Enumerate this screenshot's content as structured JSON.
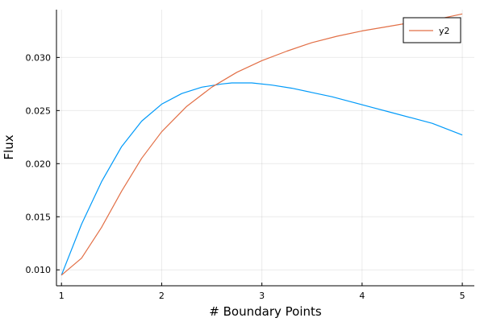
{
  "chart_data": {
    "type": "line",
    "title": "",
    "xlabel": "# Boundary Points",
    "ylabel": "Flux",
    "xlim": [
      0.95,
      5.12
    ],
    "ylim": [
      0.0085,
      0.0345
    ],
    "xticks": [
      1,
      2,
      3,
      4,
      5
    ],
    "xtick_labels": [
      "1",
      "2",
      "3",
      "4",
      "5"
    ],
    "yticks": [
      0.01,
      0.015,
      0.02,
      0.025,
      0.03
    ],
    "ytick_labels": [
      "0.010",
      "0.015",
      "0.020",
      "0.025",
      "0.030"
    ],
    "grid": true,
    "legend_position": "top-right",
    "series": [
      {
        "name": "",
        "color": "#009AF9",
        "in_legend": false,
        "x": [
          1.0,
          1.2,
          1.4,
          1.6,
          1.8,
          2.0,
          2.2,
          2.4,
          2.6,
          2.7,
          2.9,
          3.1,
          3.3,
          3.5,
          3.7,
          3.9,
          4.1,
          4.3,
          4.5,
          4.7,
          5.0
        ],
        "y": [
          0.0095,
          0.0143,
          0.0183,
          0.0216,
          0.024,
          0.0256,
          0.0266,
          0.0272,
          0.0275,
          0.0276,
          0.0276,
          0.0274,
          0.0271,
          0.0267,
          0.0263,
          0.0258,
          0.0253,
          0.0248,
          0.0243,
          0.0238,
          0.0227
        ]
      },
      {
        "name": "y2",
        "color": "#E26F46",
        "in_legend": true,
        "x": [
          1.0,
          1.2,
          1.4,
          1.6,
          1.8,
          2.0,
          2.25,
          2.5,
          2.75,
          3.0,
          3.25,
          3.5,
          3.75,
          4.0,
          4.25,
          4.5,
          4.75,
          5.0
        ],
        "y": [
          0.0095,
          0.0111,
          0.014,
          0.0174,
          0.0205,
          0.023,
          0.0254,
          0.0272,
          0.0286,
          0.0297,
          0.0306,
          0.0314,
          0.032,
          0.0325,
          0.0329,
          0.0333,
          0.0336,
          0.0341
        ]
      }
    ]
  }
}
